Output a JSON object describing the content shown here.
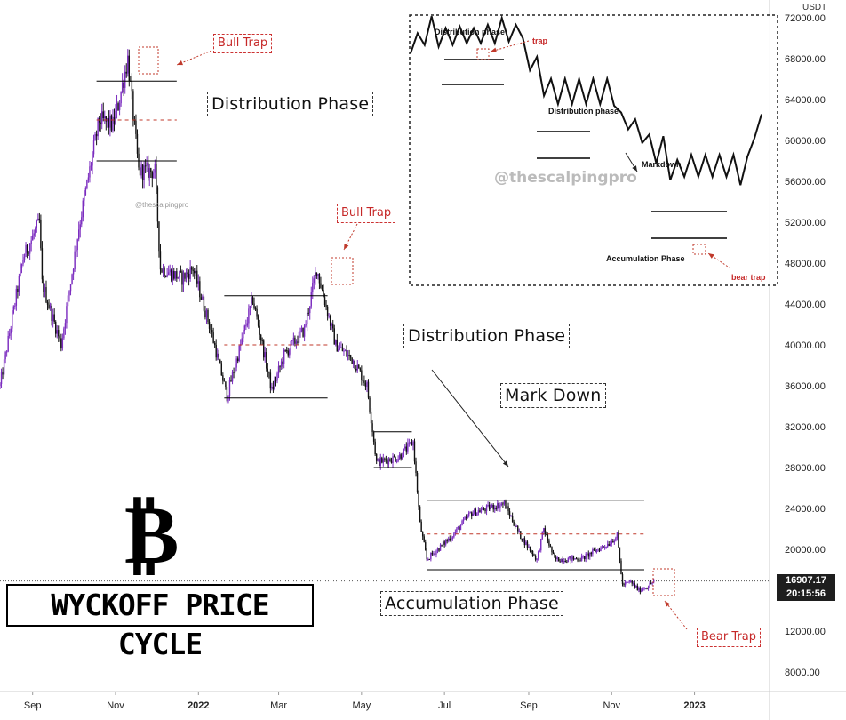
{
  "chart_data": {
    "type": "candlestick",
    "title": "WYCKOFF PRICE CYCLE",
    "y_unit": "USDT",
    "ylim": [
      6000,
      74000
    ],
    "y_ticks": [
      72000,
      68000,
      64000,
      60000,
      56000,
      52000,
      48000,
      44000,
      40000,
      36000,
      32000,
      28000,
      24000,
      20000,
      16000,
      12000,
      8000
    ],
    "y_tick_labels": [
      "72000.00",
      "68000.00",
      "64000.00",
      "60000.00",
      "56000.00",
      "52000.00",
      "48000.00",
      "44000.00",
      "40000.00",
      "36000.00",
      "32000.00",
      "28000.00",
      "24000.00",
      "20000.00",
      "16000.00",
      "12000.00",
      "8000.00"
    ],
    "x_range": [
      "2021-08-08",
      "2023-01-15"
    ],
    "x_tick_labels": [
      {
        "date": "2021-09-01",
        "label": "Sep"
      },
      {
        "date": "2021-11-01",
        "label": "Nov"
      },
      {
        "date": "2022-01-01",
        "label": "2022"
      },
      {
        "date": "2022-03-01",
        "label": "Mar"
      },
      {
        "date": "2022-05-01",
        "label": "May"
      },
      {
        "date": "2022-07-01",
        "label": "Jul"
      },
      {
        "date": "2022-09-01",
        "label": "Sep"
      },
      {
        "date": "2022-11-01",
        "label": "Nov"
      },
      {
        "date": "2023-01-01",
        "label": "2023"
      }
    ],
    "price_path": [
      [
        "2021-08-08",
        36000
      ],
      [
        "2021-08-25",
        48500
      ],
      [
        "2021-09-06",
        52000
      ],
      [
        "2021-09-08",
        46000
      ],
      [
        "2021-09-22",
        40000
      ],
      [
        "2021-10-05",
        51500
      ],
      [
        "2021-10-20",
        62000
      ],
      [
        "2021-10-30",
        61500
      ],
      [
        "2021-11-03",
        63500
      ],
      [
        "2021-11-10",
        68000
      ],
      [
        "2021-11-18",
        57000
      ],
      [
        "2021-11-30",
        57000
      ],
      [
        "2021-12-04",
        47500
      ],
      [
        "2021-12-20",
        46500
      ],
      [
        "2021-12-28",
        47500
      ],
      [
        "2022-01-10",
        41500
      ],
      [
        "2022-01-22",
        35000
      ],
      [
        "2022-02-10",
        44500
      ],
      [
        "2022-02-24",
        35500
      ],
      [
        "2022-03-05",
        39000
      ],
      [
        "2022-03-20",
        41500
      ],
      [
        "2022-03-29",
        47500
      ],
      [
        "2022-04-12",
        40000
      ],
      [
        "2022-04-25",
        38500
      ],
      [
        "2022-05-05",
        36000
      ],
      [
        "2022-05-12",
        28500
      ],
      [
        "2022-05-28",
        29000
      ],
      [
        "2022-06-08",
        30500
      ],
      [
        "2022-06-13",
        22500
      ],
      [
        "2022-06-18",
        19000
      ],
      [
        "2022-07-08",
        21500
      ],
      [
        "2022-07-20",
        23500
      ],
      [
        "2022-08-14",
        24500
      ],
      [
        "2022-08-25",
        21500
      ],
      [
        "2022-09-07",
        19000
      ],
      [
        "2022-09-12",
        22000
      ],
      [
        "2022-09-20",
        19000
      ],
      [
        "2022-10-10",
        19100
      ],
      [
        "2022-10-30",
        20600
      ],
      [
        "2022-11-05",
        21300
      ],
      [
        "2022-11-09",
        16500
      ],
      [
        "2022-11-15",
        16800
      ],
      [
        "2022-11-21",
        16000
      ],
      [
        "2022-11-28",
        16400
      ],
      [
        "2022-12-02",
        16900
      ]
    ],
    "range_lines": [
      {
        "style": "solid",
        "from": "2021-10-18",
        "to": "2021-12-16",
        "y": 65800
      },
      {
        "style": "dashed",
        "from": "2021-10-18",
        "to": "2021-12-16",
        "y": 62000
      },
      {
        "style": "solid",
        "from": "2021-10-18",
        "to": "2021-12-16",
        "y": 58000
      },
      {
        "style": "solid",
        "from": "2022-01-20",
        "to": "2022-04-06",
        "y": 44800
      },
      {
        "style": "dashed",
        "from": "2022-01-20",
        "to": "2022-04-06",
        "y": 40000
      },
      {
        "style": "solid",
        "from": "2022-01-20",
        "to": "2022-04-06",
        "y": 34800
      },
      {
        "style": "solid",
        "from": "2022-05-10",
        "to": "2022-06-07",
        "y": 31500
      },
      {
        "style": "solid",
        "from": "2022-05-10",
        "to": "2022-06-07",
        "y": 28000
      },
      {
        "style": "solid",
        "from": "2022-06-18",
        "to": "2022-11-25",
        "y": 24800
      },
      {
        "style": "dashed",
        "from": "2022-06-18",
        "to": "2022-11-25",
        "y": 21500
      },
      {
        "style": "solid",
        "from": "2022-06-18",
        "to": "2022-11-25",
        "y": 18000
      }
    ],
    "current_price": "16907.17",
    "countdown": "20:15:56",
    "annotations": {
      "distribution_1": "Distribution Phase",
      "distribution_2": "Distribution Phase",
      "mark_down": "Mark Down",
      "accumulation": "Accumulation Phase",
      "bull_trap_1": "Bull Trap",
      "bull_trap_2": "Bull Trap",
      "bear_trap": "Bear Trap"
    },
    "watermark": "@thescalpingpro",
    "watermark_small": "@thescalpingpro",
    "inset": {
      "type": "line",
      "labels": {
        "distribution_1": "Distribution phase",
        "trap": "trap",
        "distribution_2": "Distribution phase",
        "markdown": "Markdown",
        "accumulation": "Accumulation Phase",
        "bear_trap": "bear trap"
      },
      "x": [
        0,
        1,
        2,
        3,
        4,
        5,
        6,
        7,
        8,
        9,
        10,
        11,
        12,
        13,
        14,
        15,
        16,
        17,
        18,
        19,
        20,
        21,
        22,
        23,
        24,
        25,
        26,
        27,
        28,
        29,
        30,
        31,
        32,
        33,
        34,
        35,
        36,
        37,
        38,
        39,
        40,
        41,
        42,
        43,
        44,
        45,
        46,
        47,
        48,
        49,
        50
      ],
      "y": [
        6.1,
        7.3,
        6.6,
        8.3,
        6.5,
        7.6,
        6.6,
        7.7,
        6.7,
        7.6,
        6.7,
        7.8,
        6.7,
        8.2,
        6.8,
        7.8,
        7.0,
        5.1,
        5.9,
        3.6,
        4.6,
        3.1,
        4.6,
        3.1,
        4.6,
        3.1,
        4.6,
        3.1,
        4.6,
        3.0,
        2.6,
        1.6,
        2.2,
        0.8,
        1.3,
        -0.4,
        1.2,
        -1.4,
        -0.2,
        -1.2,
        0.1,
        -1.2,
        0.1,
        -1.2,
        0.1,
        -1.2,
        0.1,
        -1.7,
        0.0,
        1.1,
        2.5
      ]
    }
  }
}
